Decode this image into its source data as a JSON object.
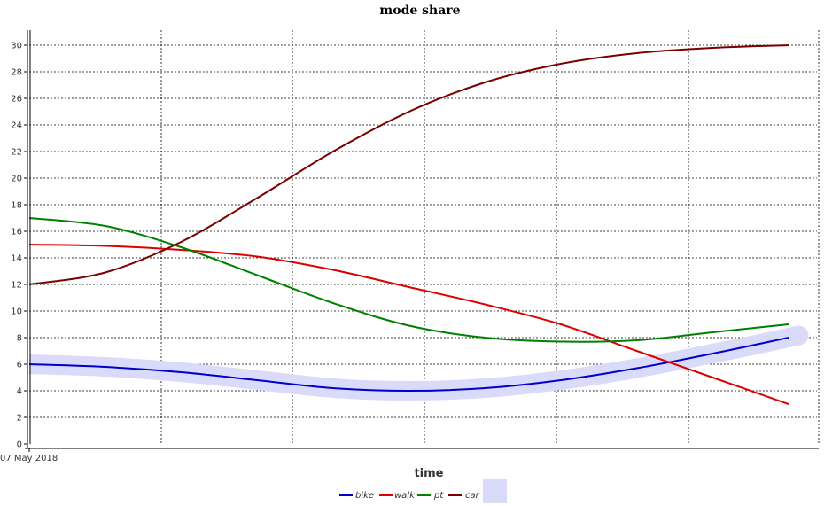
{
  "chart_data": {
    "type": "line",
    "title": "mode share",
    "xlabel": "time",
    "ylabel": "",
    "x_start_label": "07 May 2018",
    "ylim": [
      0,
      31
    ],
    "y_ticks": [
      0,
      2,
      4,
      6,
      8,
      10,
      12,
      14,
      16,
      18,
      20,
      22,
      24,
      26,
      28,
      30
    ],
    "x_count": 11,
    "grid": true,
    "legend_position": "bottom",
    "series": [
      {
        "name": "bike",
        "color": "#0000cc",
        "band": true,
        "band_color": "#dadafa",
        "values": [
          6.0,
          5.8,
          5.4,
          4.8,
          4.2,
          4.0,
          4.2,
          4.8,
          5.7,
          6.8,
          8.0
        ]
      },
      {
        "name": "walk",
        "color": "#dd0000",
        "values": [
          15.0,
          14.9,
          14.6,
          14.1,
          13.1,
          11.8,
          10.5,
          9.0,
          7.0,
          5.0,
          3.0
        ]
      },
      {
        "name": "pt",
        "color": "#008000",
        "values": [
          17.0,
          16.4,
          14.8,
          12.7,
          10.6,
          8.9,
          8.0,
          7.7,
          7.8,
          8.4,
          9.0
        ]
      },
      {
        "name": "car",
        "color": "#7a0000",
        "values": [
          12.0,
          12.9,
          15.2,
          18.5,
          22.0,
          25.0,
          27.2,
          28.6,
          29.4,
          29.8,
          30.0
        ]
      }
    ]
  }
}
